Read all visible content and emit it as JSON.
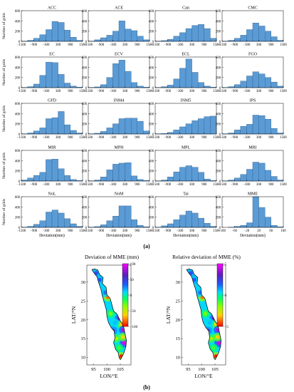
{
  "figure_labels": {
    "a": "(a)",
    "b": "(b)"
  },
  "chart_data": [
    {
      "type": "bar",
      "panel": "histograms",
      "xlabel": "Deviation(mm)",
      "ylabel": "Number of grids",
      "x_bin_edges": [
        -1500,
        -1200,
        -900,
        -600,
        -300,
        0,
        300,
        600,
        900,
        1200,
        1500
      ],
      "xticks": [
        -1500,
        -900,
        -300,
        300,
        900,
        1500
      ],
      "xtick_labels": [
        "−1500",
        "−900",
        "−300",
        "300",
        "900",
        "1500"
      ],
      "ylim": [
        0,
        600
      ],
      "yticks": [
        0,
        200,
        400,
        600
      ],
      "series": [
        {
          "name": "ACC",
          "values": [
            5,
            20,
            60,
            130,
            230,
            390,
            370,
            220,
            80,
            20
          ]
        },
        {
          "name": "ACE",
          "values": [
            5,
            30,
            70,
            120,
            200,
            400,
            240,
            210,
            100,
            30
          ]
        },
        {
          "name": "Can",
          "values": [
            5,
            15,
            40,
            100,
            170,
            250,
            310,
            330,
            250,
            60
          ]
        },
        {
          "name": "CMC",
          "values": [
            5,
            20,
            60,
            120,
            230,
            360,
            300,
            200,
            90,
            20
          ]
        },
        {
          "name": "EC",
          "values": [
            5,
            20,
            70,
            240,
            500,
            490,
            260,
            90,
            30,
            10
          ]
        },
        {
          "name": "ECV",
          "values": [
            5,
            15,
            60,
            200,
            470,
            540,
            320,
            100,
            30,
            10
          ]
        },
        {
          "name": "ECL",
          "values": [
            5,
            20,
            50,
            170,
            380,
            560,
            300,
            100,
            30,
            10
          ]
        },
        {
          "name": "FGO",
          "values": [
            5,
            20,
            60,
            130,
            230,
            310,
            270,
            200,
            110,
            30
          ]
        },
        {
          "name": "GFD",
          "values": [
            5,
            20,
            60,
            120,
            300,
            320,
            440,
            180,
            70,
            20
          ]
        },
        {
          "name": "INM4",
          "values": [
            5,
            15,
            50,
            120,
            200,
            300,
            310,
            310,
            250,
            60
          ]
        },
        {
          "name": "INM5",
          "values": [
            5,
            10,
            30,
            80,
            140,
            200,
            260,
            300,
            340,
            350
          ]
        },
        {
          "name": "IPS",
          "values": [
            5,
            20,
            80,
            150,
            190,
            370,
            360,
            290,
            110,
            20
          ]
        },
        {
          "name": "MIR",
          "values": [
            20,
            60,
            110,
            170,
            420,
            430,
            240,
            110,
            30,
            10
          ]
        },
        {
          "name": "MPH",
          "values": [
            5,
            20,
            80,
            220,
            330,
            350,
            360,
            100,
            30,
            10
          ]
        },
        {
          "name": "MPL",
          "values": [
            5,
            20,
            80,
            180,
            270,
            300,
            270,
            170,
            40,
            10
          ]
        },
        {
          "name": "MRI",
          "values": [
            5,
            20,
            60,
            130,
            230,
            370,
            350,
            210,
            90,
            20
          ]
        },
        {
          "name": "NoL",
          "values": [
            5,
            20,
            60,
            130,
            300,
            340,
            280,
            170,
            70,
            20
          ]
        },
        {
          "name": "NoM",
          "values": [
            5,
            15,
            50,
            130,
            220,
            420,
            420,
            150,
            40,
            10
          ]
        },
        {
          "name": "Tai",
          "values": [
            5,
            30,
            70,
            150,
            240,
            320,
            280,
            180,
            80,
            20
          ]
        }
      ]
    },
    {
      "type": "bar",
      "panel": "histogram-mme",
      "series": [
        {
          "name": "MME",
          "values": [
            0,
            5,
            20,
            40,
            90,
            600,
            390,
            200,
            40,
            10
          ]
        }
      ],
      "x_bin_edges": [
        -100,
        -80,
        -60,
        -40,
        -20,
        0,
        20,
        40,
        60,
        80,
        100
      ],
      "xticks": [
        -100,
        -60,
        -20,
        20,
        60,
        100
      ],
      "xtick_labels": [
        "−100",
        "−60",
        "−20",
        "20",
        "60",
        "100"
      ],
      "ylim": [
        0,
        600
      ],
      "yticks": [
        0,
        200,
        400,
        600
      ],
      "xlabel": "Deviation(mm)"
    },
    {
      "type": "heatmap",
      "panel": "map-deviation",
      "title": "Deviation of MME (mm)",
      "xlabel": "LON/°E",
      "ylabel": "LAT/°N",
      "xticks": [
        95,
        100,
        105
      ],
      "yticks": [
        10,
        15,
        20,
        25,
        30
      ],
      "xlim": [
        92.5,
        109
      ],
      "ylim": [
        8,
        34.5
      ],
      "colorbar": {
        "ticks": [
          100,
          50,
          0,
          -50,
          -100
        ],
        "tick_labels": [
          "100",
          "50",
          "0",
          "−50",
          "−100"
        ],
        "range": [
          -100,
          100
        ]
      }
    },
    {
      "type": "heatmap",
      "panel": "map-relative",
      "title": "Relative deviation of MME (%)",
      "xlabel": "LON/°E",
      "ylabel": "LAT/°N",
      "xticks": [
        95,
        100,
        105
      ],
      "yticks": [
        10,
        15,
        20,
        25,
        30
      ],
      "xlim": [
        92.5,
        109
      ],
      "ylim": [
        8,
        34.5
      ],
      "colorbar": {
        "ticks": [
          5,
          0,
          -5
        ],
        "tick_labels": [
          "5",
          "0",
          "−5"
        ],
        "range": [
          -5,
          5
        ]
      }
    }
  ],
  "colors": {
    "bar_fill": "#5b9bd5",
    "bar_edge": "#2e5f8a",
    "axis": "#000000"
  }
}
